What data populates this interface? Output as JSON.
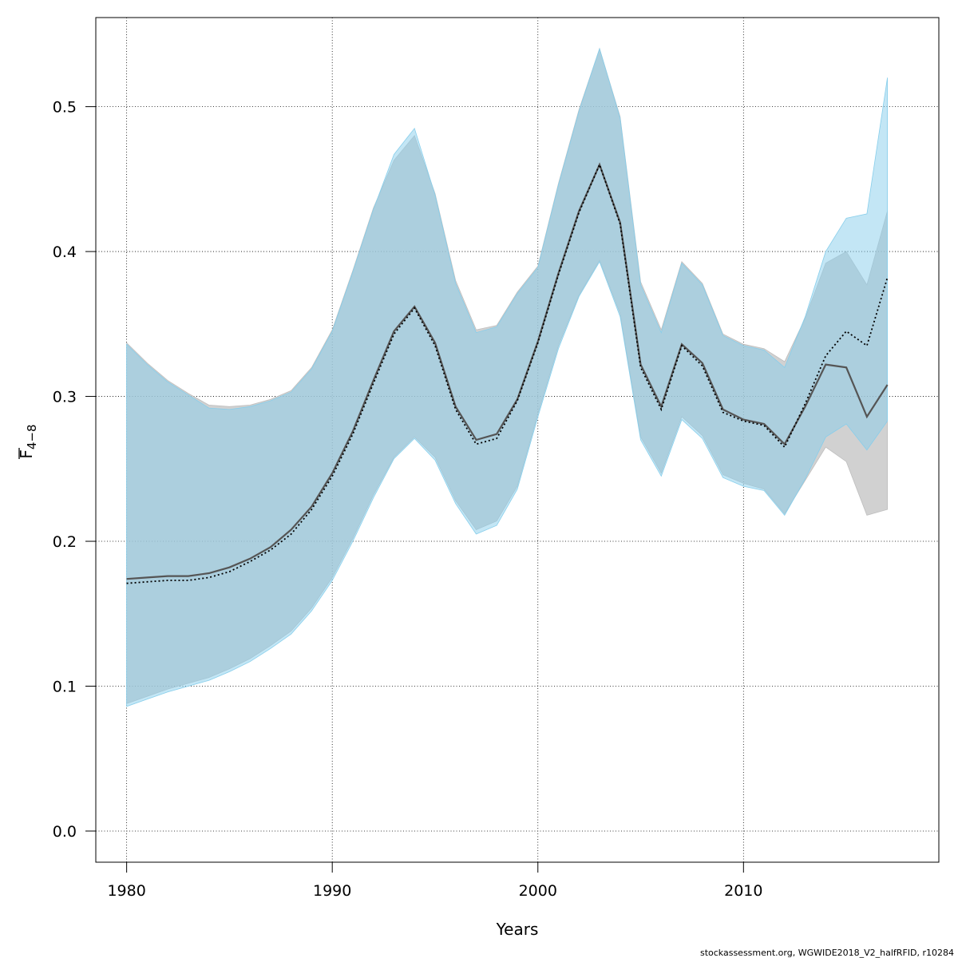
{
  "chart_data": {
    "type": "area",
    "xlabel": "Years",
    "ylabel_main": "F",
    "ylabel_sub": "4−8",
    "xlim": [
      1978.5,
      2019.5
    ],
    "ylim": [
      -0.0215,
      0.5615
    ],
    "x_ticks": [
      1980,
      1990,
      2000,
      2010
    ],
    "x_tick_labels": [
      "1980",
      "1990",
      "2000",
      "2010"
    ],
    "y_ticks": [
      0.0,
      0.1,
      0.2,
      0.3,
      0.4,
      0.5
    ],
    "y_tick_labels": [
      "0.0",
      "0.1",
      "0.2",
      "0.3",
      "0.4",
      "0.5"
    ],
    "grid": true,
    "credit": "stockassessment.org, WGWIDE2018_V2_halfRFID, r10284",
    "colors": {
      "band_a": "#bebebe",
      "band_b": "#87ceeb",
      "line_a": "#555555",
      "line_b": "#000000"
    },
    "series": [
      {
        "style": "solid",
        "x": [
          1980,
          1981,
          1982,
          1983,
          1984,
          1985,
          1986,
          1987,
          1988,
          1989,
          1990,
          1991,
          1992,
          1993,
          1994,
          1995,
          1996,
          1997,
          1998,
          1999,
          2000,
          2001,
          2002,
          2003,
          2004,
          2005,
          2006,
          2007,
          2008,
          2009,
          2010,
          2011,
          2012,
          2013,
          2014,
          2015,
          2016,
          2017
        ],
        "values": [
          0.174,
          0.175,
          0.176,
          0.176,
          0.178,
          0.182,
          0.188,
          0.196,
          0.208,
          0.224,
          0.247,
          0.276,
          0.311,
          0.345,
          0.362,
          0.337,
          0.293,
          0.27,
          0.274,
          0.298,
          0.338,
          0.385,
          0.428,
          0.46,
          0.42,
          0.322,
          0.293,
          0.336,
          0.323,
          0.291,
          0.284,
          0.281,
          0.267,
          0.293,
          0.322,
          0.32,
          0.286,
          0.308
        ],
        "lower": [
          0.088,
          0.093,
          0.098,
          0.102,
          0.106,
          0.112,
          0.119,
          0.128,
          0.138,
          0.154,
          0.175,
          0.202,
          0.232,
          0.258,
          0.272,
          0.258,
          0.228,
          0.208,
          0.214,
          0.238,
          0.288,
          0.335,
          0.37,
          0.394,
          0.357,
          0.272,
          0.247,
          0.286,
          0.273,
          0.246,
          0.24,
          0.236,
          0.219,
          0.242,
          0.265,
          0.255,
          0.218,
          0.222
        ],
        "upper": [
          0.337,
          0.323,
          0.311,
          0.302,
          0.294,
          0.293,
          0.294,
          0.298,
          0.304,
          0.32,
          0.346,
          0.387,
          0.43,
          0.463,
          0.48,
          0.44,
          0.38,
          0.346,
          0.349,
          0.372,
          0.39,
          0.447,
          0.498,
          0.54,
          0.493,
          0.379,
          0.346,
          0.393,
          0.378,
          0.343,
          0.336,
          0.333,
          0.324,
          0.354,
          0.392,
          0.4,
          0.377,
          0.428
        ]
      },
      {
        "style": "dotted",
        "x": [
          1980,
          1981,
          1982,
          1983,
          1984,
          1985,
          1986,
          1987,
          1988,
          1989,
          1990,
          1991,
          1992,
          1993,
          1994,
          1995,
          1996,
          1997,
          1998,
          1999,
          2000,
          2001,
          2002,
          2003,
          2004,
          2005,
          2006,
          2007,
          2008,
          2009,
          2010,
          2011,
          2012,
          2013,
          2014,
          2015,
          2016,
          2017
        ],
        "values": [
          0.171,
          0.172,
          0.173,
          0.173,
          0.175,
          0.179,
          0.186,
          0.194,
          0.205,
          0.222,
          0.245,
          0.274,
          0.309,
          0.343,
          0.361,
          0.335,
          0.291,
          0.267,
          0.271,
          0.297,
          0.337,
          0.384,
          0.427,
          0.46,
          0.419,
          0.32,
          0.291,
          0.335,
          0.321,
          0.289,
          0.283,
          0.28,
          0.265,
          0.295,
          0.328,
          0.345,
          0.335,
          0.382
        ],
        "lower": [
          0.086,
          0.091,
          0.096,
          0.1,
          0.104,
          0.11,
          0.117,
          0.126,
          0.136,
          0.152,
          0.173,
          0.2,
          0.23,
          0.257,
          0.271,
          0.256,
          0.226,
          0.205,
          0.211,
          0.236,
          0.286,
          0.333,
          0.369,
          0.393,
          0.355,
          0.27,
          0.245,
          0.284,
          0.271,
          0.244,
          0.238,
          0.235,
          0.218,
          0.243,
          0.272,
          0.281,
          0.263,
          0.283
        ],
        "upper": [
          0.336,
          0.322,
          0.31,
          0.301,
          0.292,
          0.291,
          0.293,
          0.297,
          0.303,
          0.319,
          0.345,
          0.386,
          0.429,
          0.467,
          0.485,
          0.439,
          0.378,
          0.344,
          0.348,
          0.371,
          0.389,
          0.446,
          0.497,
          0.54,
          0.492,
          0.377,
          0.344,
          0.392,
          0.377,
          0.342,
          0.335,
          0.332,
          0.32,
          0.355,
          0.4,
          0.423,
          0.426,
          0.52
        ]
      }
    ]
  }
}
